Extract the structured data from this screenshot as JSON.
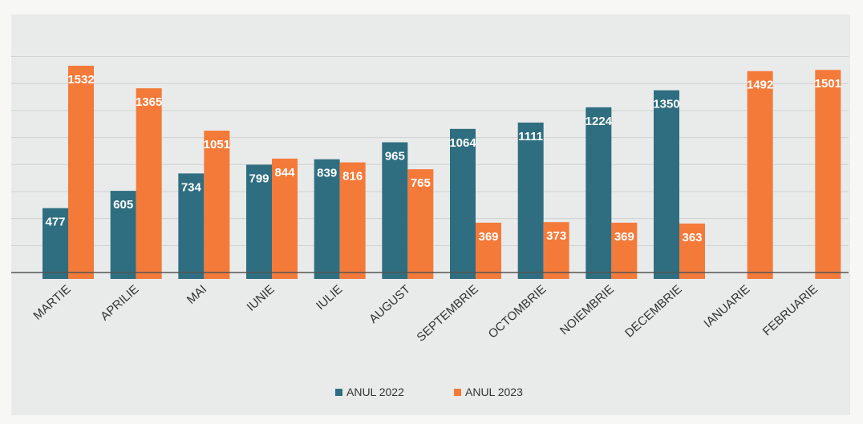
{
  "chart_data": {
    "type": "bar",
    "categories": [
      "MARTIE",
      "APRILIE",
      "MAI",
      "IUNIE",
      "IULIE",
      "AUGUST",
      "SEPTEMBRIE",
      "OCTOMBRIE",
      "NOIEMBRIE",
      "DECEMBRIE",
      "IANUARIE",
      "FEBRUARIE"
    ],
    "series": [
      {
        "name": "ANUL 2022",
        "color": "#2f6e80",
        "values": [
          477,
          605,
          734,
          799,
          839,
          965,
          1064,
          1111,
          1224,
          1350,
          null,
          null
        ],
        "labels": [
          "477",
          "605",
          "734",
          "799",
          "839",
          "965",
          "1064",
          "1111",
          "1224",
          "1350",
          "",
          ""
        ]
      },
      {
        "name": "ANUL 2023",
        "color": "#f47a3a",
        "values": [
          1532,
          1365,
          1051,
          844,
          816,
          765,
          369,
          373,
          369,
          363,
          1492,
          1501
        ],
        "labels": [
          "1532",
          "1365",
          "1051",
          "844",
          "816",
          "765",
          "369",
          "373",
          "369",
          "363",
          "1492",
          "1501"
        ]
      }
    ],
    "ylim": [
      0,
      1600
    ],
    "grid": true,
    "legend": "bottom-center",
    "title": "",
    "xlabel": "",
    "ylabel": ""
  }
}
